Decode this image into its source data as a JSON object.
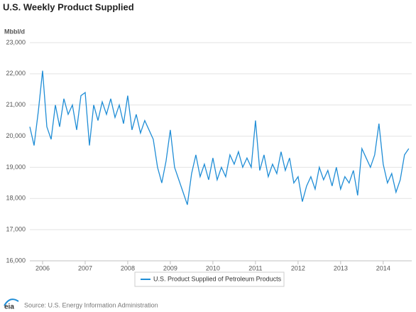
{
  "chart_data": {
    "type": "line",
    "title": "U.S. Weekly Product Supplied",
    "y_axis_label": "Mbbl/d",
    "source": "Source: U.S. Energy Information Administration",
    "logo": "eia",
    "x": [
      2005.7,
      2005.8,
      2005.9,
      2006.0,
      2006.1,
      2006.2,
      2006.3,
      2006.4,
      2006.5,
      2006.6,
      2006.7,
      2006.8,
      2006.9,
      2007.0,
      2007.1,
      2007.2,
      2007.3,
      2007.4,
      2007.5,
      2007.6,
      2007.7,
      2007.8,
      2007.9,
      2008.0,
      2008.1,
      2008.2,
      2008.3,
      2008.4,
      2008.5,
      2008.6,
      2008.7,
      2008.8,
      2008.9,
      2009.0,
      2009.1,
      2009.2,
      2009.3,
      2009.4,
      2009.5,
      2009.6,
      2009.7,
      2009.8,
      2009.9,
      2010.0,
      2010.1,
      2010.2,
      2010.3,
      2010.4,
      2010.5,
      2010.6,
      2010.7,
      2010.8,
      2010.9,
      2011.0,
      2011.1,
      2011.2,
      2011.3,
      2011.4,
      2011.5,
      2011.6,
      2011.7,
      2011.8,
      2011.9,
      2012.0,
      2012.1,
      2012.2,
      2012.3,
      2012.4,
      2012.5,
      2012.6,
      2012.7,
      2012.8,
      2012.9,
      2013.0,
      2013.1,
      2013.2,
      2013.3,
      2013.4,
      2013.5,
      2013.6,
      2013.7,
      2013.8,
      2013.9,
      2014.0,
      2014.1,
      2014.2,
      2014.3,
      2014.4,
      2014.5,
      2014.6
    ],
    "series": [
      {
        "name": "U.S. Product Supplied of Petroleum Products",
        "color": "#1f8dd6",
        "values": [
          20300,
          19700,
          20800,
          22100,
          20300,
          19900,
          21000,
          20300,
          21200,
          20700,
          21000,
          20200,
          21300,
          21400,
          19700,
          21000,
          20500,
          21100,
          20700,
          21200,
          20600,
          21000,
          20400,
          21300,
          20200,
          20700,
          20100,
          20500,
          20200,
          19900,
          19000,
          18500,
          19200,
          20200,
          19000,
          18600,
          18200,
          17800,
          18800,
          19400,
          18700,
          19100,
          18600,
          19300,
          18600,
          19000,
          18700,
          19400,
          19100,
          19500,
          19000,
          19300,
          19000,
          20500,
          18900,
          19400,
          18700,
          19100,
          18800,
          19500,
          18900,
          19300,
          18500,
          18700,
          17900,
          18400,
          18700,
          18300,
          19000,
          18600,
          18900,
          18400,
          19000,
          18300,
          18700,
          18500,
          18900,
          18100,
          19600,
          19300,
          19000,
          19400,
          20400,
          19100,
          18500,
          18800,
          18200,
          18600,
          19400,
          19600
        ]
      }
    ],
    "xlim": [
      2005.7,
      2014.67
    ],
    "xticks": [
      2006,
      2007,
      2008,
      2009,
      2010,
      2011,
      2012,
      2013,
      2014
    ],
    "ylim": [
      16000,
      23000
    ],
    "yticks": [
      {
        "value": 16000,
        "label": "16,000"
      },
      {
        "value": 17000,
        "label": "17,000"
      },
      {
        "value": 18000,
        "label": "18,000"
      },
      {
        "value": 19000,
        "label": "19,000"
      },
      {
        "value": 20000,
        "label": "20,000"
      },
      {
        "value": 21000,
        "label": "21,000"
      },
      {
        "value": 22000,
        "label": "22,000"
      },
      {
        "value": 23000,
        "label": "23,000"
      }
    ],
    "grid": true
  }
}
